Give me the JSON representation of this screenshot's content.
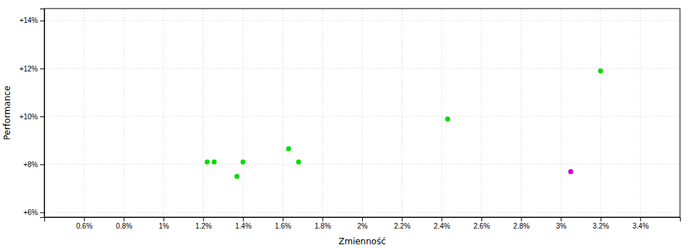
{
  "chart_data": {
    "type": "scatter",
    "xlabel": "Zmienność",
    "ylabel": "Performance",
    "xlim": [
      0.004,
      0.036
    ],
    "ylim": [
      0.058,
      0.145
    ],
    "xticks": [
      {
        "value": 0.006,
        "label": "0.6%"
      },
      {
        "value": 0.008,
        "label": "0.8%"
      },
      {
        "value": 0.01,
        "label": "1%"
      },
      {
        "value": 0.012,
        "label": "1.2%"
      },
      {
        "value": 0.014,
        "label": "1.4%"
      },
      {
        "value": 0.016,
        "label": "1.6%"
      },
      {
        "value": 0.018,
        "label": "1.8%"
      },
      {
        "value": 0.02,
        "label": "2%"
      },
      {
        "value": 0.022,
        "label": "2.2%"
      },
      {
        "value": 0.024,
        "label": "2.4%"
      },
      {
        "value": 0.026,
        "label": "2.6%"
      },
      {
        "value": 0.028,
        "label": "2.8%"
      },
      {
        "value": 0.03,
        "label": "3%"
      },
      {
        "value": 0.032,
        "label": "3.2%"
      },
      {
        "value": 0.034,
        "label": "3.4%"
      }
    ],
    "yticks": [
      {
        "value": 0.06,
        "label": "+6%"
      },
      {
        "value": 0.08,
        "label": "+8%"
      },
      {
        "value": 0.1,
        "label": "+10%"
      },
      {
        "value": 0.12,
        "label": "+12%"
      },
      {
        "value": 0.14,
        "label": "+14%"
      }
    ],
    "grid": true,
    "series": [
      {
        "color": "#00dd00",
        "x": [
          0.0122,
          0.01255,
          0.0137,
          0.014,
          0.0163,
          0.0168,
          0.0243,
          0.032
        ],
        "values": [
          0.081,
          0.081,
          0.075,
          0.081,
          0.0865,
          0.081,
          0.099,
          0.119
        ]
      },
      {
        "color": "#cc00cc",
        "x": [
          0.0305
        ],
        "values": [
          0.077
        ]
      }
    ]
  }
}
